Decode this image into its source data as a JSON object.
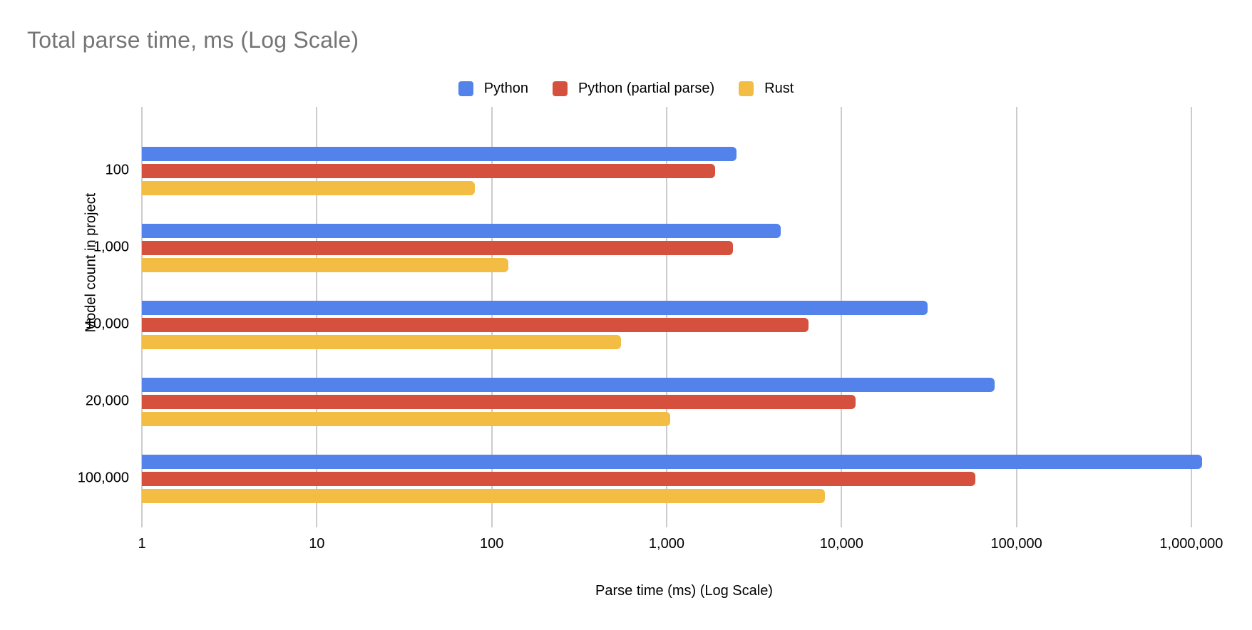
{
  "title": "Total parse time, ms (Log Scale)",
  "chart_data": {
    "type": "bar",
    "orientation": "horizontal",
    "title": "Total parse time, ms (Log Scale)",
    "xlabel": "Parse time (ms) (Log Scale)",
    "ylabel": "Model count in project",
    "x_scale": "log",
    "x_range": [
      1,
      1000000
    ],
    "x_ticks": [
      "1",
      "10",
      "100",
      "1,000",
      "10,000",
      "100,000",
      "1,000,000"
    ],
    "x_tick_values": [
      1,
      10,
      100,
      1000,
      10000,
      100000,
      1000000
    ],
    "grid": true,
    "legend_position": "top",
    "categories": [
      "100",
      "1,000",
      "10,000",
      "20,000",
      "100,000"
    ],
    "series": [
      {
        "name": "Python",
        "color": "#5282EA",
        "values": [
          2500,
          4500,
          31000,
          75000,
          1150000
        ]
      },
      {
        "name": "Python (partial parse)",
        "color": "#D6503E",
        "values": [
          1900,
          2400,
          6500,
          12000,
          58000
        ]
      },
      {
        "name": "Rust",
        "color": "#F2BD42",
        "values": [
          80,
          125,
          550,
          1050,
          8000
        ]
      }
    ]
  },
  "style": {
    "title_color": "#757575",
    "grid_color": "#cccccc",
    "text_color": "#000000",
    "background": "#ffffff"
  }
}
